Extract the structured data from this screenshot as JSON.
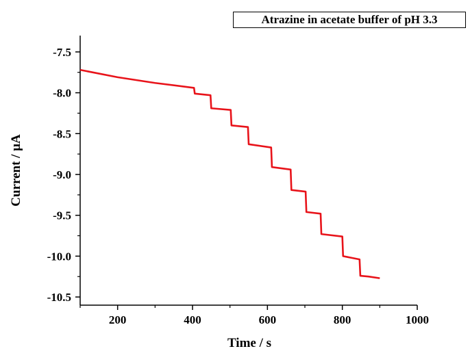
{
  "chart_data": {
    "type": "line",
    "title": "",
    "annotation": "Atrazine in acetate buffer of pH 3.3",
    "xlabel": "Time / s",
    "ylabel": "Current / μA",
    "xlim": [
      100,
      1000
    ],
    "ylim": [
      -10.6,
      -7.3
    ],
    "x_ticks": [
      200,
      400,
      600,
      800,
      1000
    ],
    "x_tick_labels": [
      "200",
      "400",
      "600",
      "800",
      "1000"
    ],
    "y_ticks": [
      -7.5,
      -8.0,
      -8.5,
      -9.0,
      -9.5,
      -10.0,
      -10.5
    ],
    "y_tick_labels": [
      "-7.5",
      "-8.0",
      "-8.5",
      "-9.0",
      "-9.5",
      "-10.0",
      "-10.5"
    ],
    "grid": false,
    "series": [
      {
        "color": "#e8131a",
        "x": [
          100,
          200,
          300,
          404,
          406,
          448,
          450,
          502,
          504,
          548,
          550,
          610,
          612,
          662,
          664,
          702,
          704,
          742,
          744,
          800,
          802,
          846,
          848,
          870,
          900
        ],
        "y": [
          -7.72,
          -7.81,
          -7.88,
          -7.94,
          -8.01,
          -8.03,
          -8.19,
          -8.21,
          -8.4,
          -8.42,
          -8.63,
          -8.67,
          -8.91,
          -8.94,
          -9.19,
          -9.21,
          -9.46,
          -9.48,
          -9.73,
          -9.76,
          -10.0,
          -10.04,
          -10.24,
          -10.25,
          -10.27
        ]
      }
    ]
  }
}
